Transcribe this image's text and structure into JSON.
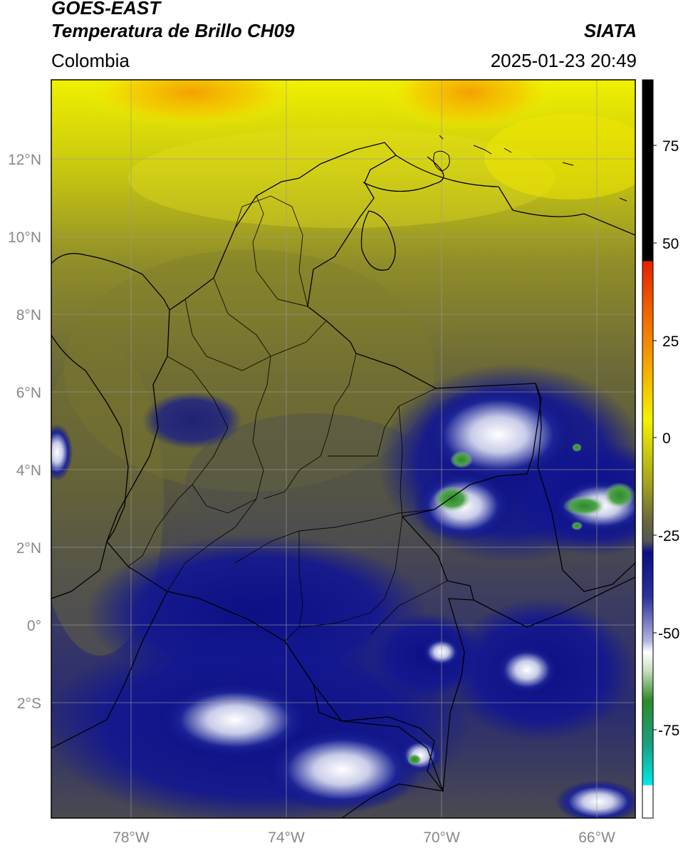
{
  "header": {
    "satellite": "GOES-EAST",
    "product": "Temperatura de Brillo CH09",
    "region": "Colombia",
    "source": "SIATA",
    "datetime": "2025-01-23 20:49"
  },
  "map": {
    "lon_labels": [
      "78°W",
      "74°W",
      "70°W",
      "66°W"
    ],
    "lat_labels": [
      "12°N",
      "10°N",
      "8°N",
      "6°N",
      "4°N",
      "2°N",
      "0°",
      "2°S"
    ],
    "lon_range": [
      -80,
      -65
    ],
    "lat_range": [
      -4.2,
      14
    ],
    "gridlines": true
  },
  "colorbar": {
    "ticks": [
      "75",
      "50",
      "25",
      "0",
      "-25",
      "-50",
      "-75"
    ],
    "range": [
      -95,
      90
    ],
    "colors": {
      "black": "#000000",
      "red": "#e52000",
      "orange": "#f59a00",
      "yellow": "#f2f200",
      "olive": "#7e7d28",
      "gray": "#555555",
      "navy": "#0c0f85",
      "white": "#ffffff",
      "green": "#2e8a2a",
      "teal": "#19c8b2",
      "cyan": "#00e8e8"
    }
  }
}
